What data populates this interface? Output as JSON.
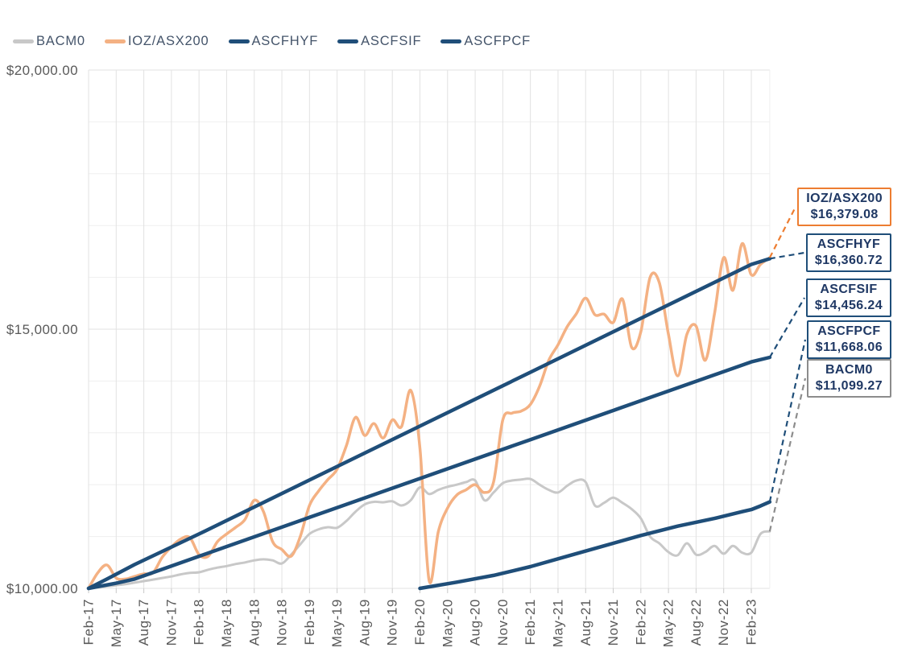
{
  "legend": {
    "items": [
      {
        "label": "BACM0",
        "color": "#C8C8C8"
      },
      {
        "label": "IOZ/ASX200",
        "color": "#F4B183"
      },
      {
        "label": "ASCFHYF",
        "color": "#1F4E79"
      },
      {
        "label": "ASCFSIF",
        "color": "#1F4E79"
      },
      {
        "label": "ASCFPCF",
        "color": "#1F4E79"
      }
    ]
  },
  "colors": {
    "navy": "#1F4E79",
    "orange_line": "#F4B183",
    "orange_accent": "#ED7D31",
    "gray_line": "#C8C8C8",
    "gray_accent": "#8C8C8C",
    "grid_major": "#E2E2E2",
    "grid_minor": "#EFEFEF",
    "tick": "#C9C9C9",
    "axis_text": "#595959",
    "callout_text": "#1F3864",
    "legend_text": "#44546A"
  },
  "chart_data": {
    "type": "line",
    "title": "",
    "xlabel": "",
    "ylabel": "",
    "ylim": [
      10000,
      20000
    ],
    "y_gridline_step": 1000,
    "grid": true,
    "legend_position": "top-left",
    "y_axis_labels": [
      "$20,000.00",
      "$15,000.00",
      "$10,000.00"
    ],
    "x_labels": [
      "Feb-17",
      "May-17",
      "Aug-17",
      "Nov-17",
      "Feb-18",
      "May-18",
      "Aug-18",
      "Nov-18",
      "Feb-19",
      "May-19",
      "Aug-19",
      "Nov-19",
      "Feb-20",
      "May-20",
      "Aug-20",
      "Nov-20",
      "Feb-21",
      "May-21",
      "Aug-21",
      "Nov-21",
      "Feb-22",
      "May-22",
      "Aug-22",
      "Nov-22",
      "Feb-23"
    ],
    "x_unit": "months since Feb-17, quarterly labels",
    "series": [
      {
        "name": "BACM0",
        "color": "#C8C8C8",
        "width": 3,
        "smooth": true,
        "start_month": 0,
        "values": [
          10000,
          10020,
          10040,
          10060,
          10080,
          10110,
          10140,
          10170,
          10200,
          10230,
          10270,
          10300,
          10310,
          10360,
          10400,
          10430,
          10470,
          10500,
          10540,
          10560,
          10540,
          10480,
          10650,
          10850,
          11050,
          11140,
          11180,
          11170,
          11300,
          11480,
          11620,
          11670,
          11660,
          11680,
          11600,
          11700,
          11950,
          11820,
          11900,
          11960,
          12000,
          12050,
          12080,
          11700,
          11850,
          12030,
          12080,
          12100,
          12110,
          12000,
          11900,
          11850,
          11980,
          12080,
          12050,
          11600,
          11650,
          11750,
          11650,
          11530,
          11350,
          11000,
          10870,
          10700,
          10640,
          10870,
          10650,
          10700,
          10820,
          10670,
          10820,
          10690,
          10690,
          11050,
          11099.27
        ]
      },
      {
        "name": "IOZ/ASX200",
        "color": "#F4B183",
        "width": 3.5,
        "smooth": true,
        "start_month": 0,
        "values": [
          10000,
          10300,
          10450,
          10200,
          10180,
          10230,
          10280,
          10300,
          10600,
          10800,
          10950,
          10980,
          10650,
          10620,
          10900,
          11050,
          11180,
          11330,
          11700,
          11480,
          10900,
          10750,
          10620,
          11000,
          11600,
          11880,
          12100,
          12300,
          12750,
          13300,
          12950,
          13180,
          12900,
          13250,
          13120,
          13820,
          12700,
          10150,
          11100,
          11550,
          11800,
          11900,
          12000,
          11850,
          12050,
          13250,
          13380,
          13420,
          13550,
          13900,
          14400,
          14700,
          15050,
          15300,
          15600,
          15280,
          15290,
          15130,
          15580,
          14650,
          14950,
          16000,
          15900,
          14900,
          14100,
          14900,
          15060,
          14400,
          15300,
          16380,
          15750,
          16650,
          16050,
          16250,
          16379.08
        ]
      },
      {
        "name": "ASCFHYF",
        "color": "#1F4E79",
        "width": 4.5,
        "smooth": false,
        "points": [
          [
            0,
            10000
          ],
          [
            2,
            10180
          ],
          [
            5,
            10460
          ],
          [
            12,
            11050
          ],
          [
            24,
            12090
          ],
          [
            36,
            13130
          ],
          [
            48,
            14170
          ],
          [
            60,
            15210
          ],
          [
            72,
            16250
          ],
          [
            74,
            16360.72
          ]
        ]
      },
      {
        "name": "ASCFSIF",
        "color": "#1F4E79",
        "width": 4.5,
        "smooth": false,
        "points": [
          [
            0,
            10000
          ],
          [
            3,
            10100
          ],
          [
            5,
            10180
          ],
          [
            12,
            10620
          ],
          [
            24,
            11370
          ],
          [
            36,
            12120
          ],
          [
            48,
            12870
          ],
          [
            60,
            13620
          ],
          [
            72,
            14370
          ],
          [
            74,
            14456.24
          ]
        ]
      },
      {
        "name": "ASCFPCF",
        "color": "#1F4E79",
        "width": 4.5,
        "smooth": false,
        "points": [
          [
            36,
            10000
          ],
          [
            40,
            10120
          ],
          [
            44,
            10250
          ],
          [
            48,
            10420
          ],
          [
            52,
            10620
          ],
          [
            56,
            10820
          ],
          [
            60,
            11020
          ],
          [
            64,
            11200
          ],
          [
            68,
            11350
          ],
          [
            71,
            11480
          ],
          [
            72,
            11520
          ],
          [
            73,
            11590
          ],
          [
            74,
            11668.06
          ]
        ]
      }
    ],
    "callouts": [
      {
        "label": "IOZ/ASX200",
        "value": "$16,379.08",
        "series": "IOZ/ASX200",
        "border": "#ED7D31",
        "leader": "#ED7D31"
      },
      {
        "label": "ASCFHYF",
        "value": "$16,360.72",
        "series": "ASCFHYF",
        "border": "#1F4E79",
        "leader": "#1F4E79"
      },
      {
        "label": "ASCFSIF",
        "value": "$14,456.24",
        "series": "ASCFSIF",
        "border": "#1F4E79",
        "leader": "#1F4E79"
      },
      {
        "label": "ASCFPCF",
        "value": "$11,668.06",
        "series": "ASCFPCF",
        "border": "#1F4E79",
        "leader": "#1F4E79"
      },
      {
        "label": "BACM0",
        "value": "$11,099.27",
        "series": "BACM0",
        "border": "#8C8C8C",
        "leader": "#8C8C8C"
      }
    ]
  }
}
